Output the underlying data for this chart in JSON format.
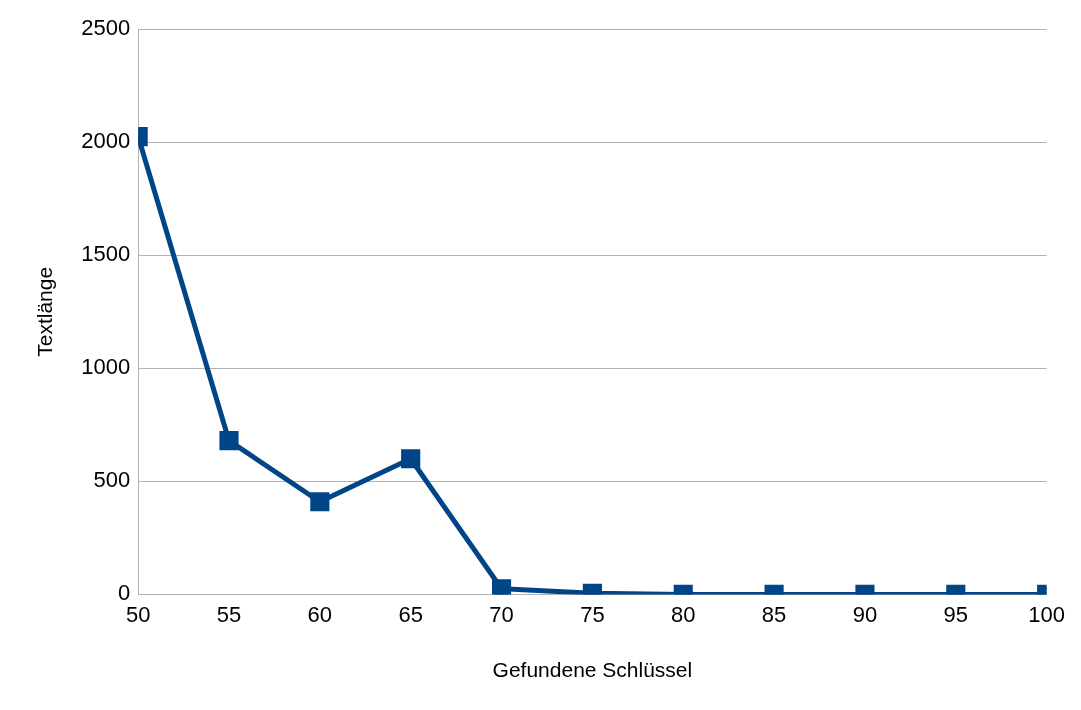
{
  "chart_data": {
    "type": "line",
    "xlabel": "Gefundene Schlüssel",
    "ylabel": "Textlänge",
    "x": [
      50,
      55,
      60,
      65,
      70,
      75,
      80,
      85,
      90,
      95,
      100
    ],
    "series": [
      {
        "color": "#004586",
        "values": [
          2025,
          680,
          410,
          600,
          25,
          5,
          0,
          0,
          0,
          0,
          0
        ]
      }
    ],
    "xlim": [
      50,
      100
    ],
    "xticks": [
      50,
      55,
      60,
      65,
      70,
      75,
      80,
      85,
      90,
      95,
      100
    ],
    "ylim": [
      0,
      2500
    ],
    "yticks": [
      0,
      500,
      1000,
      1500,
      2000,
      2500
    ],
    "grid": "y",
    "legend": false,
    "marker": "square",
    "line_style": "solid"
  }
}
